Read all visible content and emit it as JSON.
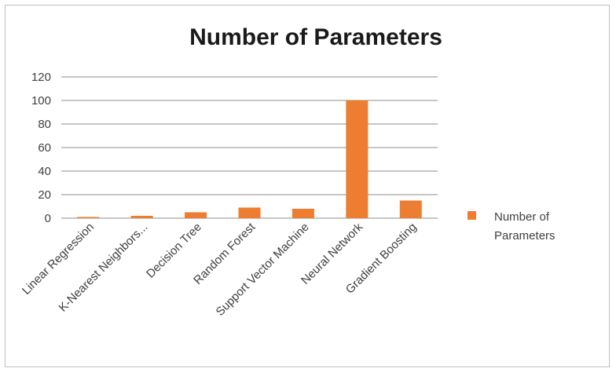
{
  "chart_data": {
    "type": "bar",
    "title": "Number of Parameters",
    "xlabel": "",
    "ylabel": "",
    "categories": [
      "Linear Regression",
      "K-Nearest Neighbors...",
      "Decision Tree",
      "Random Forest",
      "Support Vector Machine",
      "Neural Network",
      "Gradient Boosting"
    ],
    "series": [
      {
        "name": "Number of Parameters",
        "values": [
          1,
          2,
          5,
          9,
          8,
          100,
          15
        ]
      }
    ],
    "ylim": [
      0,
      120
    ],
    "yticks": [
      "0",
      "20",
      "40",
      "60",
      "80",
      "100",
      "120"
    ],
    "grid": true,
    "legend": {
      "position": "right",
      "lines": [
        "Number of",
        "Parameters"
      ]
    },
    "colors": {
      "bar": "#ED7D31",
      "grid": "#8c8c8c",
      "text": "#404040"
    }
  }
}
